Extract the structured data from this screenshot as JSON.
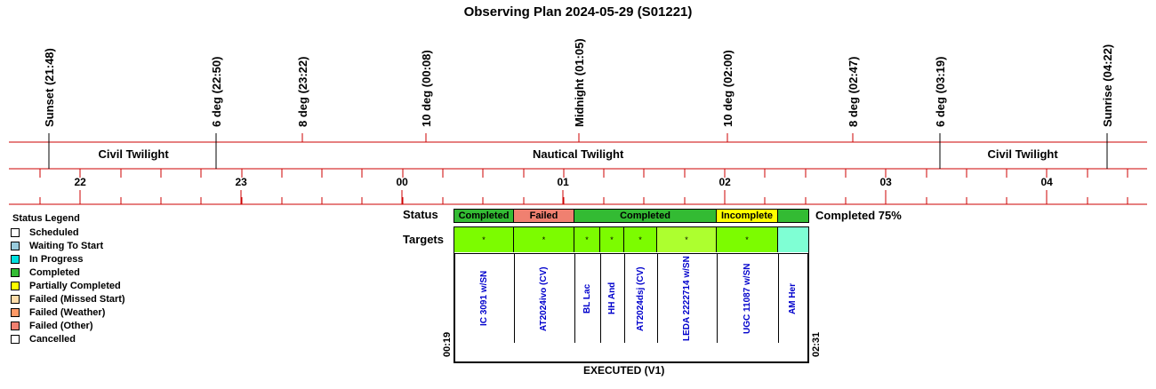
{
  "title": "Observing Plan 2024-05-29 (S01221)",
  "events": [
    {
      "label": "Sunset (21:48)"
    },
    {
      "label": "6 deg (22:50)"
    },
    {
      "label": "8 deg (23:22)"
    },
    {
      "label": "10 deg (00:08)"
    },
    {
      "label": "Midnight (01:05)"
    },
    {
      "label": "10 deg (02:00)"
    },
    {
      "label": "8 deg (02:47)"
    },
    {
      "label": "6 deg (03:19)"
    },
    {
      "label": "Sunrise (04:22)"
    }
  ],
  "twilight": [
    {
      "label": "Civil Twilight"
    },
    {
      "label": "Nautical Twilight"
    },
    {
      "label": "Civil Twilight"
    }
  ],
  "hours": [
    "22",
    "23",
    "00",
    "01",
    "02",
    "03",
    "04"
  ],
  "legend": {
    "title": "Status Legend",
    "items": [
      {
        "label": "Scheduled",
        "color": "#ffffff"
      },
      {
        "label": "Waiting To Start",
        "color": "#99ccdd"
      },
      {
        "label": "In Progress",
        "color": "#00e0e0"
      },
      {
        "label": "Completed",
        "color": "#33bb33"
      },
      {
        "label": "Partially Completed",
        "color": "#ffff00"
      },
      {
        "label": "Failed (Missed Start)",
        "color": "#ffddaa"
      },
      {
        "label": "Failed (Weather)",
        "color": "#ff9966"
      },
      {
        "label": "Failed (Other)",
        "color": "#f08070"
      },
      {
        "label": "Cancelled",
        "color": "#ffffff"
      }
    ]
  },
  "status_row": {
    "label": "Status",
    "segments": [
      {
        "label": "Completed",
        "color": "#33bb33"
      },
      {
        "label": "Failed",
        "color": "#f08070"
      },
      {
        "label": "Completed",
        "color": "#33bb33"
      },
      {
        "label": "Incomplete",
        "color": "#ffff00"
      },
      {
        "label": "",
        "color": "#33bb33"
      }
    ],
    "summary": "Completed 75%"
  },
  "targets_row": {
    "label": "Targets",
    "targets": [
      {
        "name": "IC 3091 w/SN",
        "mark": "*",
        "color": "#7cfc00"
      },
      {
        "name": "AT2024ivo (CV)",
        "mark": "*",
        "color": "#7cfc00"
      },
      {
        "name": "BL Lac",
        "mark": "*",
        "color": "#7cfc00"
      },
      {
        "name": "HH And",
        "mark": "*",
        "color": "#7cfc00"
      },
      {
        "name": "AT2024dsj (CV)",
        "mark": "*",
        "color": "#7cfc00"
      },
      {
        "name": "LEDA 2222714 w/SN",
        "mark": "*",
        "color": "#adff2f"
      },
      {
        "name": "UGC 11087 w/SN",
        "mark": "*",
        "color": "#7cfc00"
      },
      {
        "name": "AM Her",
        "mark": "",
        "color": "#7fffd4"
      }
    ]
  },
  "plan_start": "00:19",
  "plan_end": "02:31",
  "footer": "EXECUTED (V1)"
}
